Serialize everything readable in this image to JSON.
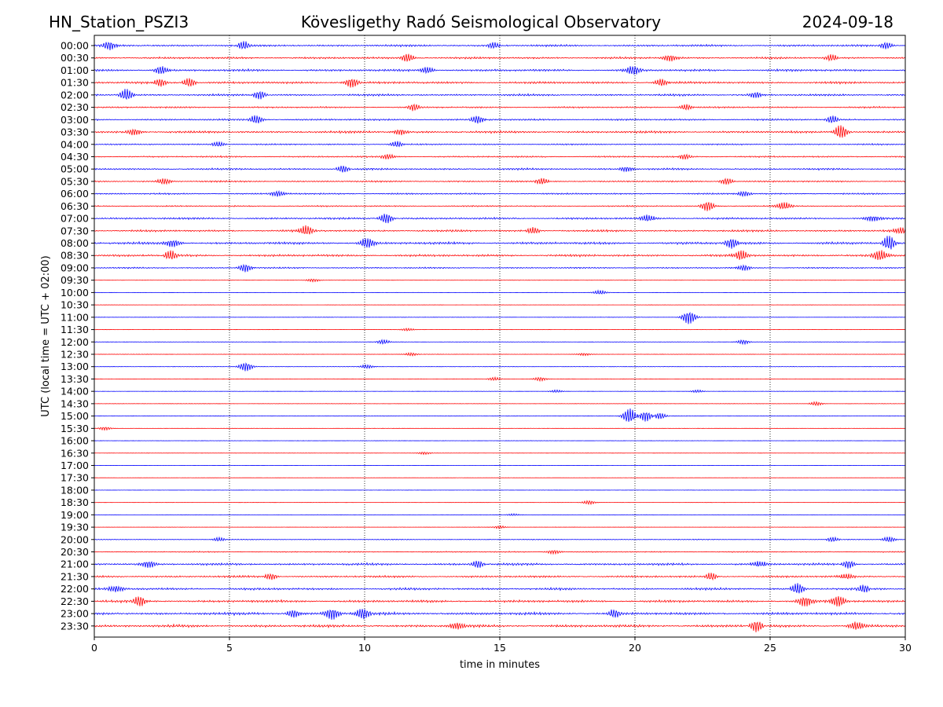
{
  "header": {
    "station": "HN_Station_PSZI3",
    "observatory": "Kövesligethy Radó Seismological Observatory",
    "date": "2024-09-18"
  },
  "chart_data": {
    "type": "line",
    "title": "Kövesligethy Radó Seismological Observatory",
    "xlabel": "time in minutes",
    "ylabel": "UTC (local time = UTC + 02:00)",
    "xlim": [
      0,
      30
    ],
    "xticks": [
      0,
      5,
      10,
      15,
      20,
      25,
      30
    ],
    "xtick_labels": [
      "0",
      "5",
      "10",
      "15",
      "20",
      "25",
      "30"
    ],
    "vertical_gridlines_at": [
      5,
      10,
      15,
      20,
      25
    ],
    "colors": {
      "even_rows": "#0000ff",
      "odd_rows": "#ff0000"
    },
    "rows": [
      {
        "label": "00:00",
        "noise": 0.9,
        "color": "blue",
        "events": [
          {
            "t": 0.6,
            "a": 1.6
          },
          {
            "t": 5.5,
            "a": 1.4
          },
          {
            "t": 14.8,
            "a": 1.1
          },
          {
            "t": 29.3,
            "a": 1.2
          }
        ]
      },
      {
        "label": "00:30",
        "noise": 0.9,
        "color": "red",
        "events": [
          {
            "t": 11.6,
            "a": 1.5
          },
          {
            "t": 21.3,
            "a": 1.4
          },
          {
            "t": 27.3,
            "a": 1.2
          }
        ]
      },
      {
        "label": "01:00",
        "noise": 1.0,
        "color": "blue",
        "events": [
          {
            "t": 2.5,
            "a": 1.6
          },
          {
            "t": 12.3,
            "a": 1.3
          },
          {
            "t": 19.9,
            "a": 1.9
          }
        ]
      },
      {
        "label": "01:30",
        "noise": 1.0,
        "color": "red",
        "events": [
          {
            "t": 2.4,
            "a": 1.4
          },
          {
            "t": 3.5,
            "a": 1.6
          },
          {
            "t": 9.5,
            "a": 1.8
          },
          {
            "t": 21.0,
            "a": 1.4
          }
        ]
      },
      {
        "label": "02:00",
        "noise": 0.9,
        "color": "blue",
        "events": [
          {
            "t": 1.2,
            "a": 2.2
          },
          {
            "t": 6.1,
            "a": 1.5
          },
          {
            "t": 24.5,
            "a": 1.2
          }
        ]
      },
      {
        "label": "02:30",
        "noise": 0.7,
        "color": "red",
        "events": [
          {
            "t": 11.8,
            "a": 1.2
          },
          {
            "t": 21.9,
            "a": 1.1
          }
        ]
      },
      {
        "label": "03:00",
        "noise": 0.8,
        "color": "blue",
        "events": [
          {
            "t": 6.0,
            "a": 1.6
          },
          {
            "t": 14.2,
            "a": 1.5
          },
          {
            "t": 27.3,
            "a": 1.3
          }
        ]
      },
      {
        "label": "03:30",
        "noise": 1.0,
        "color": "red",
        "events": [
          {
            "t": 1.5,
            "a": 1.3
          },
          {
            "t": 11.3,
            "a": 1.2
          },
          {
            "t": 27.6,
            "a": 2.6
          }
        ]
      },
      {
        "label": "04:00",
        "noise": 0.6,
        "color": "blue",
        "events": [
          {
            "t": 4.6,
            "a": 1.0
          },
          {
            "t": 11.2,
            "a": 1.1
          }
        ]
      },
      {
        "label": "04:30",
        "noise": 0.7,
        "color": "red",
        "events": [
          {
            "t": 10.9,
            "a": 1.0
          },
          {
            "t": 21.8,
            "a": 1.0
          }
        ]
      },
      {
        "label": "05:00",
        "noise": 0.8,
        "color": "blue",
        "events": [
          {
            "t": 9.2,
            "a": 1.2
          },
          {
            "t": 19.7,
            "a": 1.0
          }
        ]
      },
      {
        "label": "05:30",
        "noise": 0.7,
        "color": "red",
        "events": [
          {
            "t": 2.6,
            "a": 1.2
          },
          {
            "t": 16.6,
            "a": 1.1
          },
          {
            "t": 23.4,
            "a": 1.2
          }
        ]
      },
      {
        "label": "06:00",
        "noise": 0.7,
        "color": "blue",
        "events": [
          {
            "t": 6.8,
            "a": 1.2
          },
          {
            "t": 24.0,
            "a": 1.0
          }
        ]
      },
      {
        "label": "06:30",
        "noise": 0.6,
        "color": "red",
        "events": [
          {
            "t": 22.7,
            "a": 1.8
          },
          {
            "t": 25.5,
            "a": 1.6
          }
        ]
      },
      {
        "label": "07:00",
        "noise": 0.9,
        "color": "blue",
        "events": [
          {
            "t": 10.8,
            "a": 1.9
          },
          {
            "t": 20.5,
            "a": 1.4
          },
          {
            "t": 28.8,
            "a": 1.3
          }
        ]
      },
      {
        "label": "07:30",
        "noise": 0.9,
        "color": "red",
        "events": [
          {
            "t": 7.8,
            "a": 2.0
          },
          {
            "t": 16.2,
            "a": 1.2
          },
          {
            "t": 29.8,
            "a": 1.4
          }
        ]
      },
      {
        "label": "08:00",
        "noise": 1.1,
        "color": "blue",
        "events": [
          {
            "t": 2.9,
            "a": 1.6
          },
          {
            "t": 10.1,
            "a": 2.2
          },
          {
            "t": 23.6,
            "a": 1.9
          },
          {
            "t": 29.4,
            "a": 2.6
          }
        ]
      },
      {
        "label": "08:30",
        "noise": 1.0,
        "color": "red",
        "events": [
          {
            "t": 2.8,
            "a": 1.7
          },
          {
            "t": 23.9,
            "a": 2.0
          },
          {
            "t": 29.1,
            "a": 2.2
          }
        ]
      },
      {
        "label": "09:00",
        "noise": 0.6,
        "color": "blue",
        "events": [
          {
            "t": 5.6,
            "a": 1.5
          },
          {
            "t": 24.0,
            "a": 1.1
          }
        ]
      },
      {
        "label": "09:30",
        "noise": 0.15,
        "color": "red",
        "events": [
          {
            "t": 8.1,
            "a": 0.6
          }
        ]
      },
      {
        "label": "10:00",
        "noise": 0.12,
        "color": "blue",
        "events": [
          {
            "t": 18.7,
            "a": 0.8
          }
        ]
      },
      {
        "label": "10:30",
        "noise": 0.1,
        "color": "red",
        "events": []
      },
      {
        "label": "11:00",
        "noise": 0.15,
        "color": "blue",
        "events": [
          {
            "t": 22.0,
            "a": 2.5
          }
        ]
      },
      {
        "label": "11:30",
        "noise": 0.12,
        "color": "red",
        "events": [
          {
            "t": 11.6,
            "a": 0.5
          }
        ]
      },
      {
        "label": "12:00",
        "noise": 0.18,
        "color": "blue",
        "events": [
          {
            "t": 10.7,
            "a": 0.8
          },
          {
            "t": 24.0,
            "a": 0.8
          }
        ]
      },
      {
        "label": "12:30",
        "noise": 0.15,
        "color": "red",
        "events": [
          {
            "t": 11.7,
            "a": 0.6
          },
          {
            "t": 18.1,
            "a": 0.5
          }
        ]
      },
      {
        "label": "13:00",
        "noise": 0.2,
        "color": "blue",
        "events": [
          {
            "t": 5.6,
            "a": 1.7
          },
          {
            "t": 10.1,
            "a": 0.7
          }
        ]
      },
      {
        "label": "13:30",
        "noise": 0.15,
        "color": "red",
        "events": [
          {
            "t": 14.8,
            "a": 0.6
          },
          {
            "t": 16.5,
            "a": 0.7
          }
        ]
      },
      {
        "label": "14:00",
        "noise": 0.12,
        "color": "blue",
        "events": [
          {
            "t": 17.1,
            "a": 0.5
          },
          {
            "t": 22.3,
            "a": 0.5
          }
        ]
      },
      {
        "label": "14:30",
        "noise": 0.15,
        "color": "red",
        "events": [
          {
            "t": 26.7,
            "a": 0.7
          }
        ]
      },
      {
        "label": "15:00",
        "noise": 0.15,
        "color": "blue",
        "events": [
          {
            "t": 19.8,
            "a": 2.8
          },
          {
            "t": 20.4,
            "a": 2.0
          },
          {
            "t": 20.9,
            "a": 1.2
          }
        ]
      },
      {
        "label": "15:30",
        "noise": 0.1,
        "color": "red",
        "events": [
          {
            "t": 0.4,
            "a": 0.6
          }
        ]
      },
      {
        "label": "16:00",
        "noise": 0.1,
        "color": "blue",
        "events": []
      },
      {
        "label": "16:30",
        "noise": 0.1,
        "color": "red",
        "events": [
          {
            "t": 12.2,
            "a": 0.5
          }
        ]
      },
      {
        "label": "17:00",
        "noise": 0.08,
        "color": "blue",
        "events": []
      },
      {
        "label": "17:30",
        "noise": 0.08,
        "color": "red",
        "events": []
      },
      {
        "label": "18:00",
        "noise": 0.08,
        "color": "blue",
        "events": []
      },
      {
        "label": "18:30",
        "noise": 0.1,
        "color": "red",
        "events": [
          {
            "t": 18.3,
            "a": 0.7
          }
        ]
      },
      {
        "label": "19:00",
        "noise": 0.12,
        "color": "blue",
        "events": [
          {
            "t": 15.5,
            "a": 0.4
          }
        ]
      },
      {
        "label": "19:30",
        "noise": 0.12,
        "color": "red",
        "events": [
          {
            "t": 15.0,
            "a": 0.5
          }
        ]
      },
      {
        "label": "20:00",
        "noise": 0.35,
        "color": "blue",
        "events": [
          {
            "t": 4.6,
            "a": 0.7
          },
          {
            "t": 27.3,
            "a": 0.8
          },
          {
            "t": 29.4,
            "a": 1.0
          }
        ]
      },
      {
        "label": "20:30",
        "noise": 0.5,
        "color": "red",
        "events": [
          {
            "t": 17.0,
            "a": 0.8
          }
        ]
      },
      {
        "label": "21:00",
        "noise": 1.0,
        "color": "blue",
        "events": [
          {
            "t": 2.0,
            "a": 1.5
          },
          {
            "t": 14.2,
            "a": 1.3
          },
          {
            "t": 24.6,
            "a": 1.3
          },
          {
            "t": 27.9,
            "a": 1.4
          }
        ]
      },
      {
        "label": "21:30",
        "noise": 0.9,
        "color": "red",
        "events": [
          {
            "t": 6.5,
            "a": 1.2
          },
          {
            "t": 22.8,
            "a": 1.3
          },
          {
            "t": 27.8,
            "a": 1.2
          }
        ]
      },
      {
        "label": "22:00",
        "noise": 1.0,
        "color": "blue",
        "events": [
          {
            "t": 0.8,
            "a": 1.4
          },
          {
            "t": 26.0,
            "a": 2.0
          },
          {
            "t": 28.5,
            "a": 1.3
          }
        ]
      },
      {
        "label": "22:30",
        "noise": 1.1,
        "color": "red",
        "events": [
          {
            "t": 1.7,
            "a": 1.8
          },
          {
            "t": 26.3,
            "a": 2.2
          },
          {
            "t": 27.5,
            "a": 2.2
          }
        ]
      },
      {
        "label": "23:00",
        "noise": 1.2,
        "color": "blue",
        "events": [
          {
            "t": 8.8,
            "a": 2.4
          },
          {
            "t": 9.9,
            "a": 2.2
          },
          {
            "t": 7.4,
            "a": 1.6
          },
          {
            "t": 19.2,
            "a": 1.4
          }
        ]
      },
      {
        "label": "23:30",
        "noise": 1.2,
        "color": "red",
        "events": [
          {
            "t": 13.4,
            "a": 1.5
          },
          {
            "t": 24.5,
            "a": 2.0
          },
          {
            "t": 28.2,
            "a": 1.8
          }
        ]
      }
    ]
  }
}
